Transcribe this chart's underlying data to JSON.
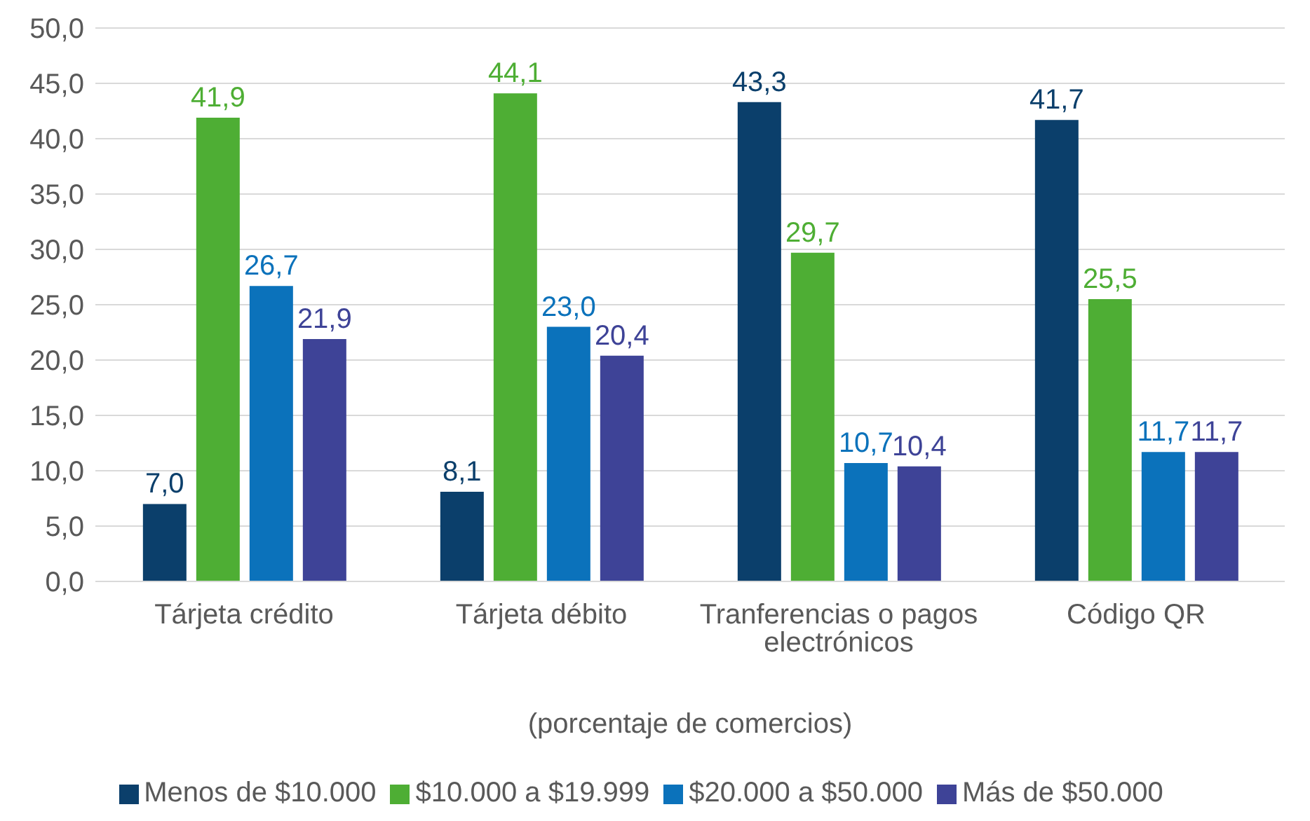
{
  "chart_data": {
    "type": "bar",
    "xlabel": "(porcentaje de comercios)",
    "categories": [
      "Tárjeta crédito",
      "Tárjeta débito",
      "Tranferencias o pagos electrónicos",
      "Código QR"
    ],
    "series": [
      {
        "name": "Menos de $10.000",
        "color": "#0b3f6b",
        "values": [
          7.0,
          8.1,
          43.3,
          41.7
        ],
        "value_labels": [
          "7,0",
          "8,1",
          "43,3",
          "41,7"
        ]
      },
      {
        "name": "$10.000 a $19.999",
        "color": "#4eae34",
        "values": [
          41.9,
          44.1,
          29.7,
          25.5
        ],
        "value_labels": [
          "41,9",
          "44,1",
          "29,7",
          "25,5"
        ]
      },
      {
        "name": "$20.000 a $50.000",
        "color": "#0b72bb",
        "values": [
          26.7,
          23.0,
          10.7,
          11.7
        ],
        "value_labels": [
          "26,7",
          "23,0",
          "10,7",
          "11,7"
        ]
      },
      {
        "name": "Más de $50.000",
        "color": "#3e4397",
        "values": [
          21.9,
          20.4,
          10.4,
          11.7
        ],
        "value_labels": [
          "21,9",
          "20,4",
          "10,4",
          "11,7"
        ]
      }
    ],
    "ylim": [
      0,
      50
    ],
    "yticks": [
      {
        "value": 0,
        "label": "0,0"
      },
      {
        "value": 5,
        "label": "5,0"
      },
      {
        "value": 10,
        "label": "10,0"
      },
      {
        "value": 15,
        "label": "15,0"
      },
      {
        "value": 20,
        "label": "20,0"
      },
      {
        "value": 25,
        "label": "25,0"
      },
      {
        "value": 30,
        "label": "30,0"
      },
      {
        "value": 35,
        "label": "35,0"
      },
      {
        "value": 40,
        "label": "40,0"
      },
      {
        "value": 45,
        "label": "45,0"
      },
      {
        "value": 50,
        "label": "50,0"
      }
    ],
    "grid": "y",
    "legend": "bottom"
  }
}
